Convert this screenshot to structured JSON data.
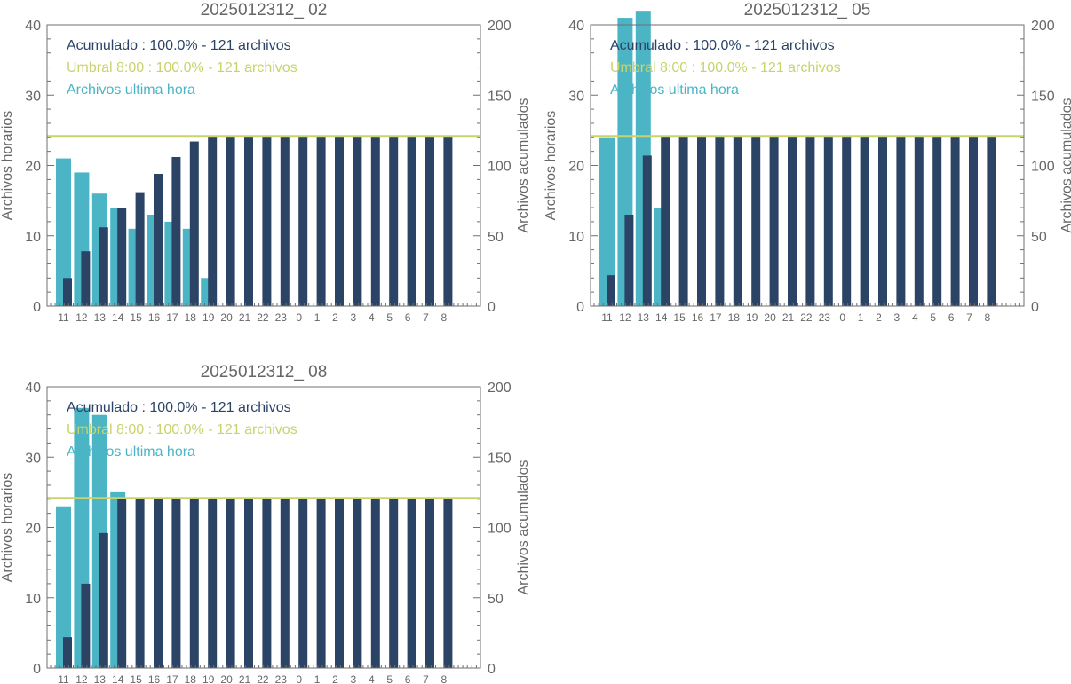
{
  "colors": {
    "hourly": "#4bb5c5",
    "cumulative": "#2b4466",
    "threshold": "#c8d36b",
    "axis": "#6f6f6f",
    "text": "#666666"
  },
  "labels": {
    "ylabel_left": "Archivos horarios",
    "ylabel_right": "Archivos acumulados",
    "legend_cumulative": "Acumulado : 100.0% - 121 archivos",
    "legend_threshold": "Umbral 8:00 : 100.0% - 121 archivos",
    "legend_hourly": "Archivos ultima hora"
  },
  "chart_data": [
    {
      "type": "bar",
      "title": "2025012312_ 02",
      "categories": [
        "11",
        "12",
        "13",
        "14",
        "15",
        "16",
        "17",
        "18",
        "19",
        "20",
        "21",
        "22",
        "23",
        "0",
        "1",
        "2",
        "3",
        "4",
        "5",
        "6",
        "7",
        "8"
      ],
      "ylabel": "Archivos horarios",
      "y2label": "Archivos acumulados",
      "ylim": [
        0,
        40
      ],
      "y2lim": [
        0,
        200
      ],
      "yticks": [
        0,
        10,
        20,
        30,
        40
      ],
      "y2ticks": [
        0,
        50,
        100,
        150,
        200
      ],
      "threshold": 121,
      "legend": [
        "Acumulado : 100.0% - 121 archivos",
        "Umbral 8:00 : 100.0% - 121 archivos",
        "Archivos ultima hora"
      ],
      "series": [
        {
          "name": "Archivos ultima hora",
          "axis": "left",
          "values": [
            21,
            19,
            16,
            14,
            11,
            13,
            12,
            11,
            4,
            0,
            0,
            0,
            0,
            0,
            0,
            0,
            0,
            0,
            0,
            0,
            0,
            0
          ]
        },
        {
          "name": "Acumulado",
          "axis": "right",
          "values": [
            20,
            39,
            56,
            70,
            81,
            94,
            106,
            117,
            121,
            121,
            121,
            121,
            121,
            121,
            121,
            121,
            121,
            121,
            121,
            121,
            121,
            121
          ]
        }
      ]
    },
    {
      "type": "bar",
      "title": "2025012312_ 05",
      "categories": [
        "11",
        "12",
        "13",
        "14",
        "15",
        "16",
        "17",
        "18",
        "19",
        "20",
        "21",
        "22",
        "23",
        "0",
        "1",
        "2",
        "3",
        "4",
        "5",
        "6",
        "7",
        "8"
      ],
      "ylabel": "Archivos horarios",
      "y2label": "Archivos acumulados",
      "ylim": [
        0,
        40
      ],
      "y2lim": [
        0,
        200
      ],
      "yticks": [
        0,
        10,
        20,
        30,
        40
      ],
      "y2ticks": [
        0,
        50,
        100,
        150,
        200
      ],
      "threshold": 121,
      "legend": [
        "Acumulado : 100.0% - 121 archivos",
        "Umbral 8:00 : 100.0% - 121 archivos",
        "Archivos ultima hora"
      ],
      "series": [
        {
          "name": "Archivos ultima hora",
          "axis": "left",
          "values": [
            24,
            41,
            42,
            14,
            0,
            0,
            0,
            0,
            0,
            0,
            0,
            0,
            0,
            0,
            0,
            0,
            0,
            0,
            0,
            0,
            0,
            0
          ]
        },
        {
          "name": "Acumulado",
          "axis": "right",
          "values": [
            22,
            65,
            107,
            121,
            121,
            121,
            121,
            121,
            121,
            121,
            121,
            121,
            121,
            121,
            121,
            121,
            121,
            121,
            121,
            121,
            121,
            121
          ]
        }
      ]
    },
    {
      "type": "bar",
      "title": "2025012312_ 08",
      "categories": [
        "11",
        "12",
        "13",
        "14",
        "15",
        "16",
        "17",
        "18",
        "19",
        "20",
        "21",
        "22",
        "23",
        "0",
        "1",
        "2",
        "3",
        "4",
        "5",
        "6",
        "7",
        "8"
      ],
      "ylabel": "Archivos horarios",
      "y2label": "Archivos acumulados",
      "ylim": [
        0,
        40
      ],
      "y2lim": [
        0,
        200
      ],
      "yticks": [
        0,
        10,
        20,
        30,
        40
      ],
      "y2ticks": [
        0,
        50,
        100,
        150,
        200
      ],
      "threshold": 121,
      "legend": [
        "Acumulado : 100.0% - 121 archivos",
        "Umbral 8:00 : 100.0% - 121 archivos",
        "Archivos ultima hora"
      ],
      "series": [
        {
          "name": "Archivos ultima hora",
          "axis": "left",
          "values": [
            23,
            37,
            36,
            25,
            0,
            0,
            0,
            0,
            0,
            0,
            0,
            0,
            0,
            0,
            0,
            0,
            0,
            0,
            0,
            0,
            0,
            0
          ]
        },
        {
          "name": "Acumulado",
          "axis": "right",
          "values": [
            22,
            60,
            96,
            121,
            121,
            121,
            121,
            121,
            121,
            121,
            121,
            121,
            121,
            121,
            121,
            121,
            121,
            121,
            121,
            121,
            121,
            121
          ]
        }
      ]
    }
  ]
}
